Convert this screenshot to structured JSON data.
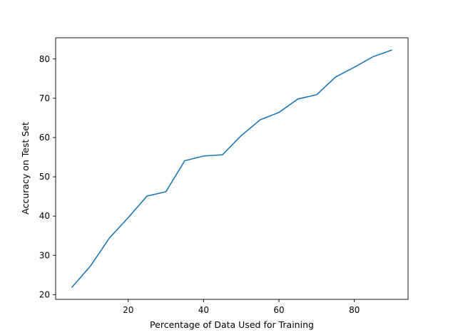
{
  "chart_data": {
    "type": "line",
    "title": "",
    "xlabel": "Percentage of Data Used for Training",
    "ylabel": "Accuracy on Test Set",
    "xlim": [
      0.75,
      94.25
    ],
    "ylim": [
      18.8,
      85.4
    ],
    "xticks": [
      20,
      40,
      60,
      80
    ],
    "yticks": [
      20,
      30,
      40,
      50,
      60,
      70,
      80
    ],
    "grid": false,
    "legend": "none",
    "series": [
      {
        "color": "#1f77b4",
        "x": [
          5,
          10,
          15,
          20,
          25,
          30,
          35,
          40,
          45,
          50,
          55,
          60,
          65,
          70,
          75,
          80,
          85,
          90
        ],
        "y": [
          21.8,
          27.3,
          34.4,
          39.6,
          45.1,
          46.2,
          54.1,
          55.3,
          55.6,
          60.5,
          64.5,
          66.4,
          69.8,
          70.9,
          75.4,
          77.9,
          80.6,
          82.3
        ]
      }
    ]
  }
}
